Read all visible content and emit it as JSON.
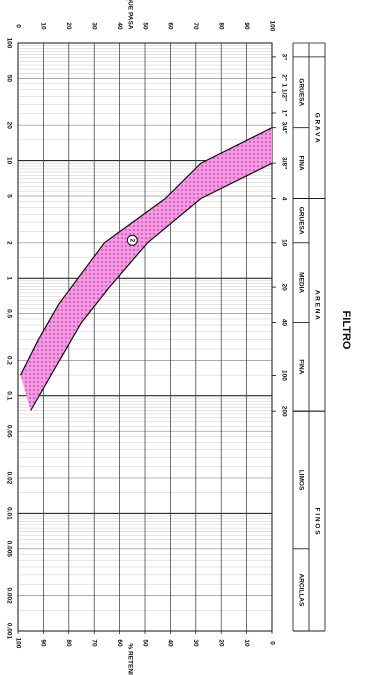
{
  "chart_data": {
    "type": "line",
    "title": "FILTRO",
    "x_label": "% RETENIDO",
    "y_label": "% QUE PASA",
    "xscale": "log",
    "xlim": [
      100,
      0.001
    ],
    "xticks": [
      100,
      50,
      20,
      10,
      5,
      2,
      1,
      0.5,
      0.2,
      0.1,
      0.05,
      0.02,
      0.01,
      0.005,
      0.002,
      0.001
    ],
    "ylim": [
      0,
      100
    ],
    "yticks": [
      0,
      10,
      20,
      30,
      40,
      50,
      60,
      70,
      80,
      90,
      100
    ],
    "y2lim": [
      100,
      0
    ],
    "y2ticks": [
      100,
      90,
      80,
      70,
      60,
      50,
      40,
      30,
      20,
      10,
      0
    ],
    "grid": true,
    "band_color": "#f29ae2",
    "dot_color": "#c2209e",
    "series": [
      {
        "color": "#111111",
        "x": [
          19.05,
          9.5,
          4.76,
          2.0,
          0.6,
          0.3,
          0.15
        ],
        "values": [
          100,
          72,
          58,
          34,
          16,
          8,
          1
        ]
      },
      {
        "color": "#111111",
        "x": [
          9.5,
          4.76,
          2.0,
          0.84,
          0.42,
          0.15,
          0.075
        ],
        "values": [
          100,
          72,
          51,
          36,
          25,
          13,
          5
        ]
      }
    ],
    "annotations": [
      {
        "text": "2",
        "x": 2.1,
        "y": 45
      }
    ],
    "sieves": [
      {
        "value": 76.2,
        "label": "3\""
      },
      {
        "value": 50.8,
        "label": "2\""
      },
      {
        "value": 38.1,
        "label": "1 1/2\""
      },
      {
        "value": 25.4,
        "label": "1\""
      },
      {
        "value": 19.05,
        "label": "3/4\""
      },
      {
        "value": 9.52,
        "label": "3/8\""
      },
      {
        "value": 4.76,
        "label": "4"
      },
      {
        "value": 2.0,
        "label": "10"
      },
      {
        "value": 0.84,
        "label": "20"
      },
      {
        "value": 0.42,
        "label": "40"
      },
      {
        "value": 0.149,
        "label": "100"
      },
      {
        "value": 0.074,
        "label": "200"
      }
    ],
    "zones": [
      {
        "label": "G R A V A",
        "from": 76.2,
        "to": 4.76,
        "sub": [
          {
            "label": "GRUESA",
            "from": 76.2,
            "to": 19.05
          },
          {
            "label": "FINA",
            "from": 19.05,
            "to": 4.76
          }
        ]
      },
      {
        "label": "A R E N A",
        "from": 4.76,
        "to": 0.074,
        "sub": [
          {
            "label": "GRUESA",
            "from": 4.76,
            "to": 2.0
          },
          {
            "label": "MEDIA",
            "from": 2.0,
            "to": 0.42
          },
          {
            "label": "FINA",
            "from": 0.42,
            "to": 0.074
          }
        ]
      },
      {
        "label": "F I N O S",
        "from": 0.074,
        "to": 0.001,
        "sub": [
          {
            "label": "LIMOS",
            "from": 0.074,
            "to": 0.005
          },
          {
            "label": "ARCILLAS",
            "from": 0.005,
            "to": 0.001
          }
        ]
      }
    ]
  }
}
